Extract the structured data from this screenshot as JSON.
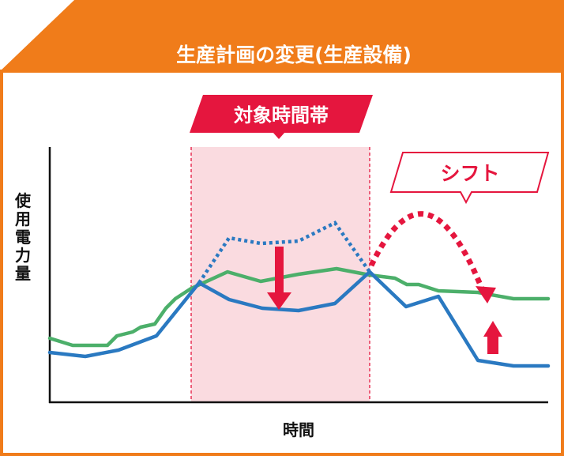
{
  "header": {
    "title": "生産計画の変更(生産設備)",
    "color": "#f07c1a"
  },
  "target_band": {
    "label": "対象時間帯",
    "color": "#e5163e",
    "fill": "#fadbe0"
  },
  "shift_label": {
    "label": "シフト",
    "color": "#e5163e"
  },
  "axes": {
    "ylabel": "使用電力量",
    "xlabel": "時間"
  },
  "series": {
    "green_color": "#4caf6a",
    "blue_color": "#2a79c1",
    "arrow_color": "#e5163e"
  }
}
